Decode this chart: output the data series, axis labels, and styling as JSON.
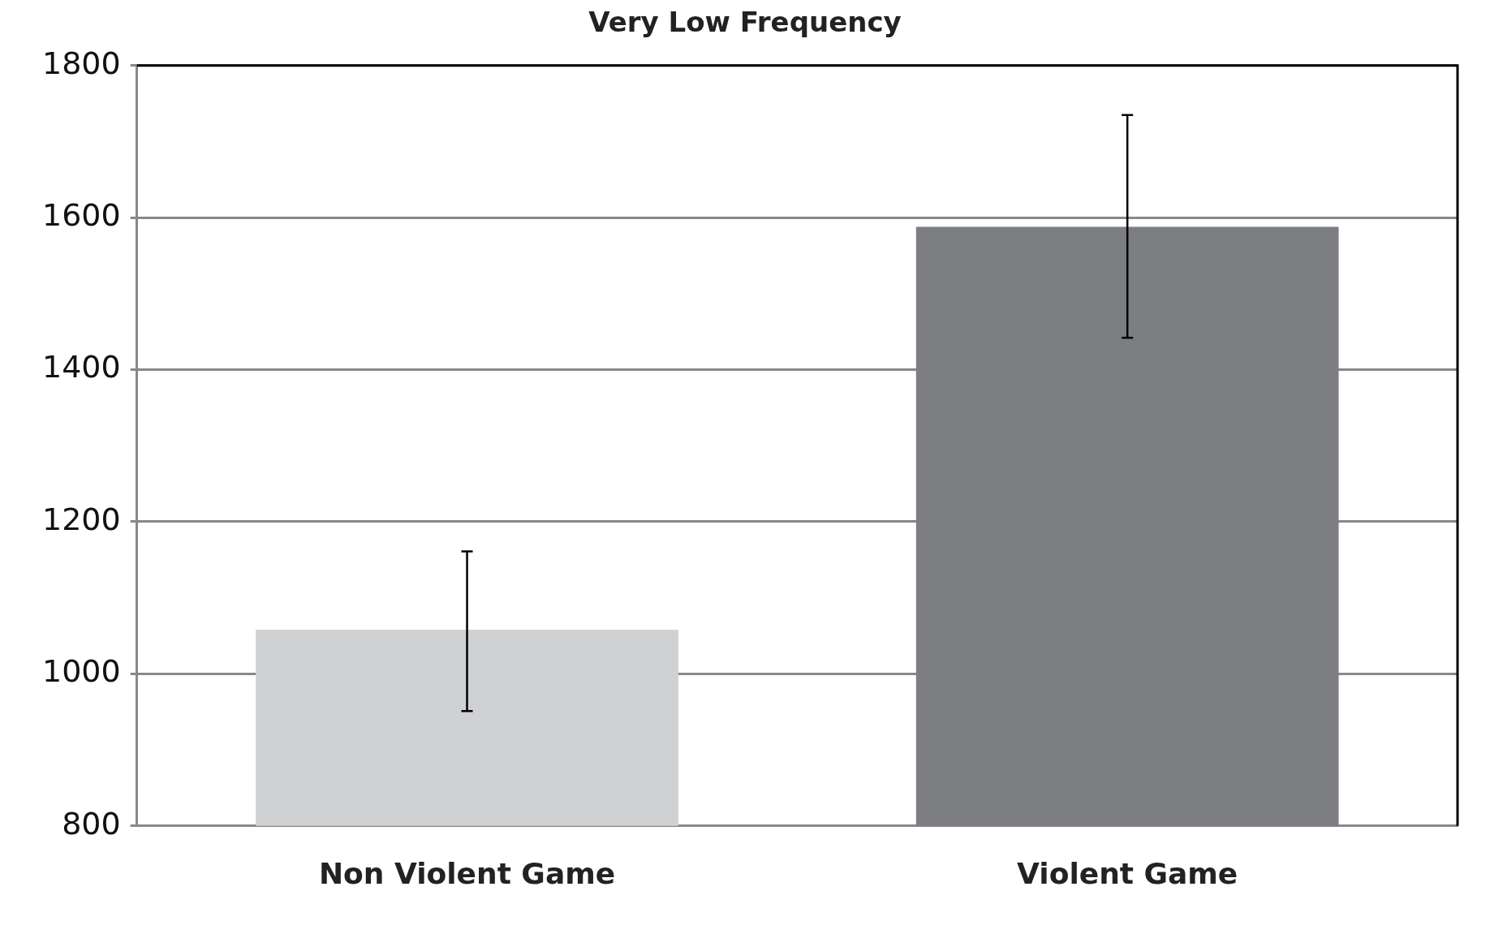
{
  "chart_data": {
    "type": "bar",
    "title": "Very Low Frequency",
    "categories": [
      "Non Violent Game",
      "Violent Game"
    ],
    "values": [
      1058,
      1588
    ],
    "colors": [
      "#d0d1d3",
      "#7d7e82"
    ],
    "errors": [
      [
        951,
        1161
      ],
      [
        1442,
        1735
      ]
    ],
    "ylim": [
      800,
      1800
    ],
    "yticks": [
      800,
      1000,
      1200,
      1400,
      1600,
      1800
    ],
    "grid": "y",
    "legend": false
  }
}
